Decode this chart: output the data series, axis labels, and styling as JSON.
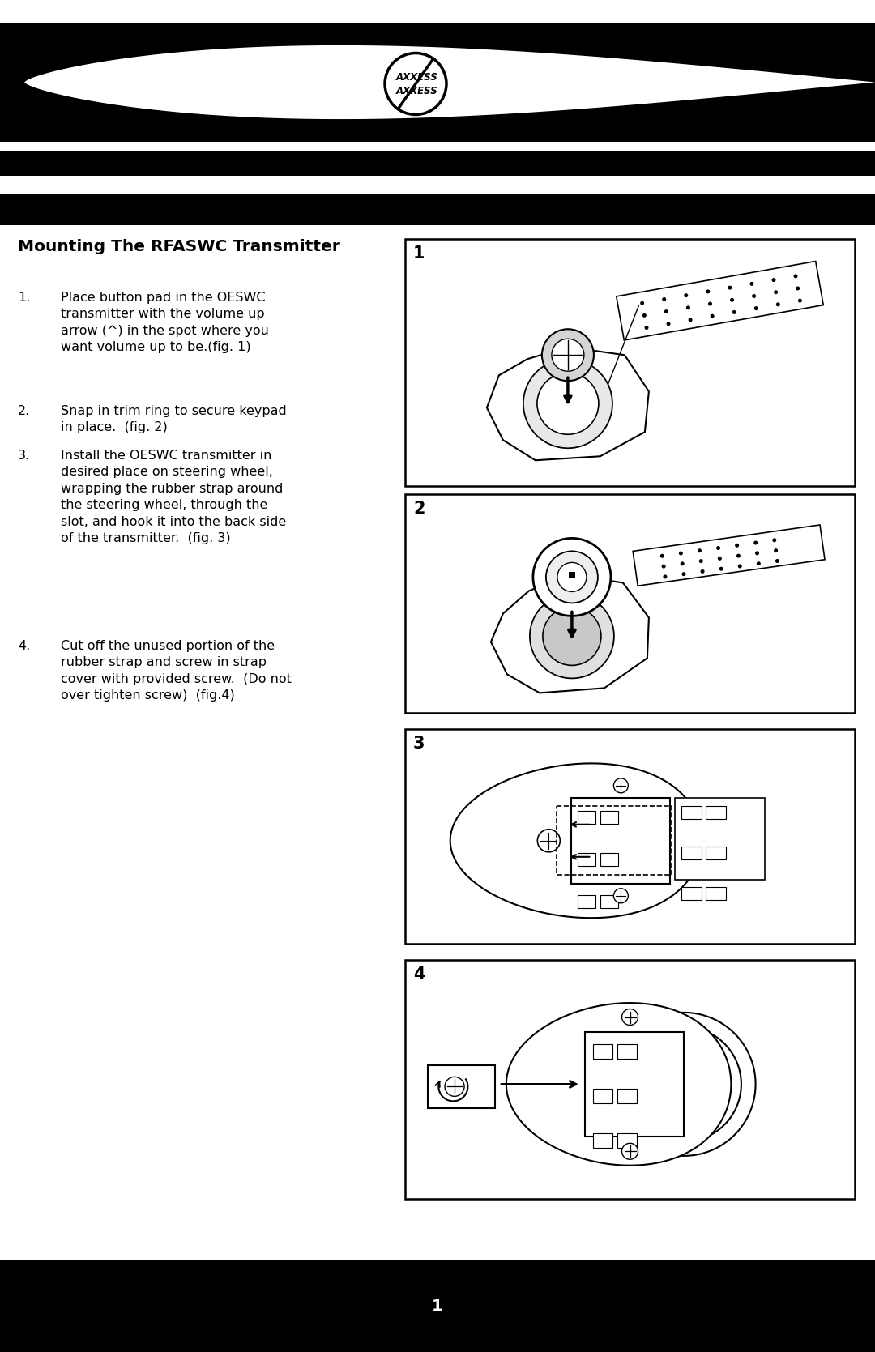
{
  "bg_color": "#ffffff",
  "header_bar_color": "#000000",
  "footer_bar_color": "#000000",
  "title": "Mounting The RFASWC Transmitter",
  "title_fontsize": 14.5,
  "instructions": [
    {
      "num": "1.",
      "text": "Place button pad in the OESWC\ntransmitter with the volume up\narrow (^) in the spot where you\nwant volume up to be.(fig. 1)"
    },
    {
      "num": "2.",
      "text": "Snap in trim ring to secure keypad\nin place.  (fig. 2)"
    },
    {
      "num": "3.",
      "text": "Install the OESWC transmitter in\ndesired place on steering wheel,\nwrapping the rubber strap around\nthe steering wheel, through the\nslot, and hook it into the back side\nof the transmitter.  (fig. 3)"
    },
    {
      "num": "4.",
      "text": "Cut off the unused portion of the\nrubber strap and screw in strap\ncover with provided screw.  (Do not\nover tighten screw)  (fig.4)"
    }
  ],
  "figure_labels": [
    "1",
    "2",
    "3",
    "4"
  ],
  "page_number": "1",
  "logo_text": "AXXESS"
}
